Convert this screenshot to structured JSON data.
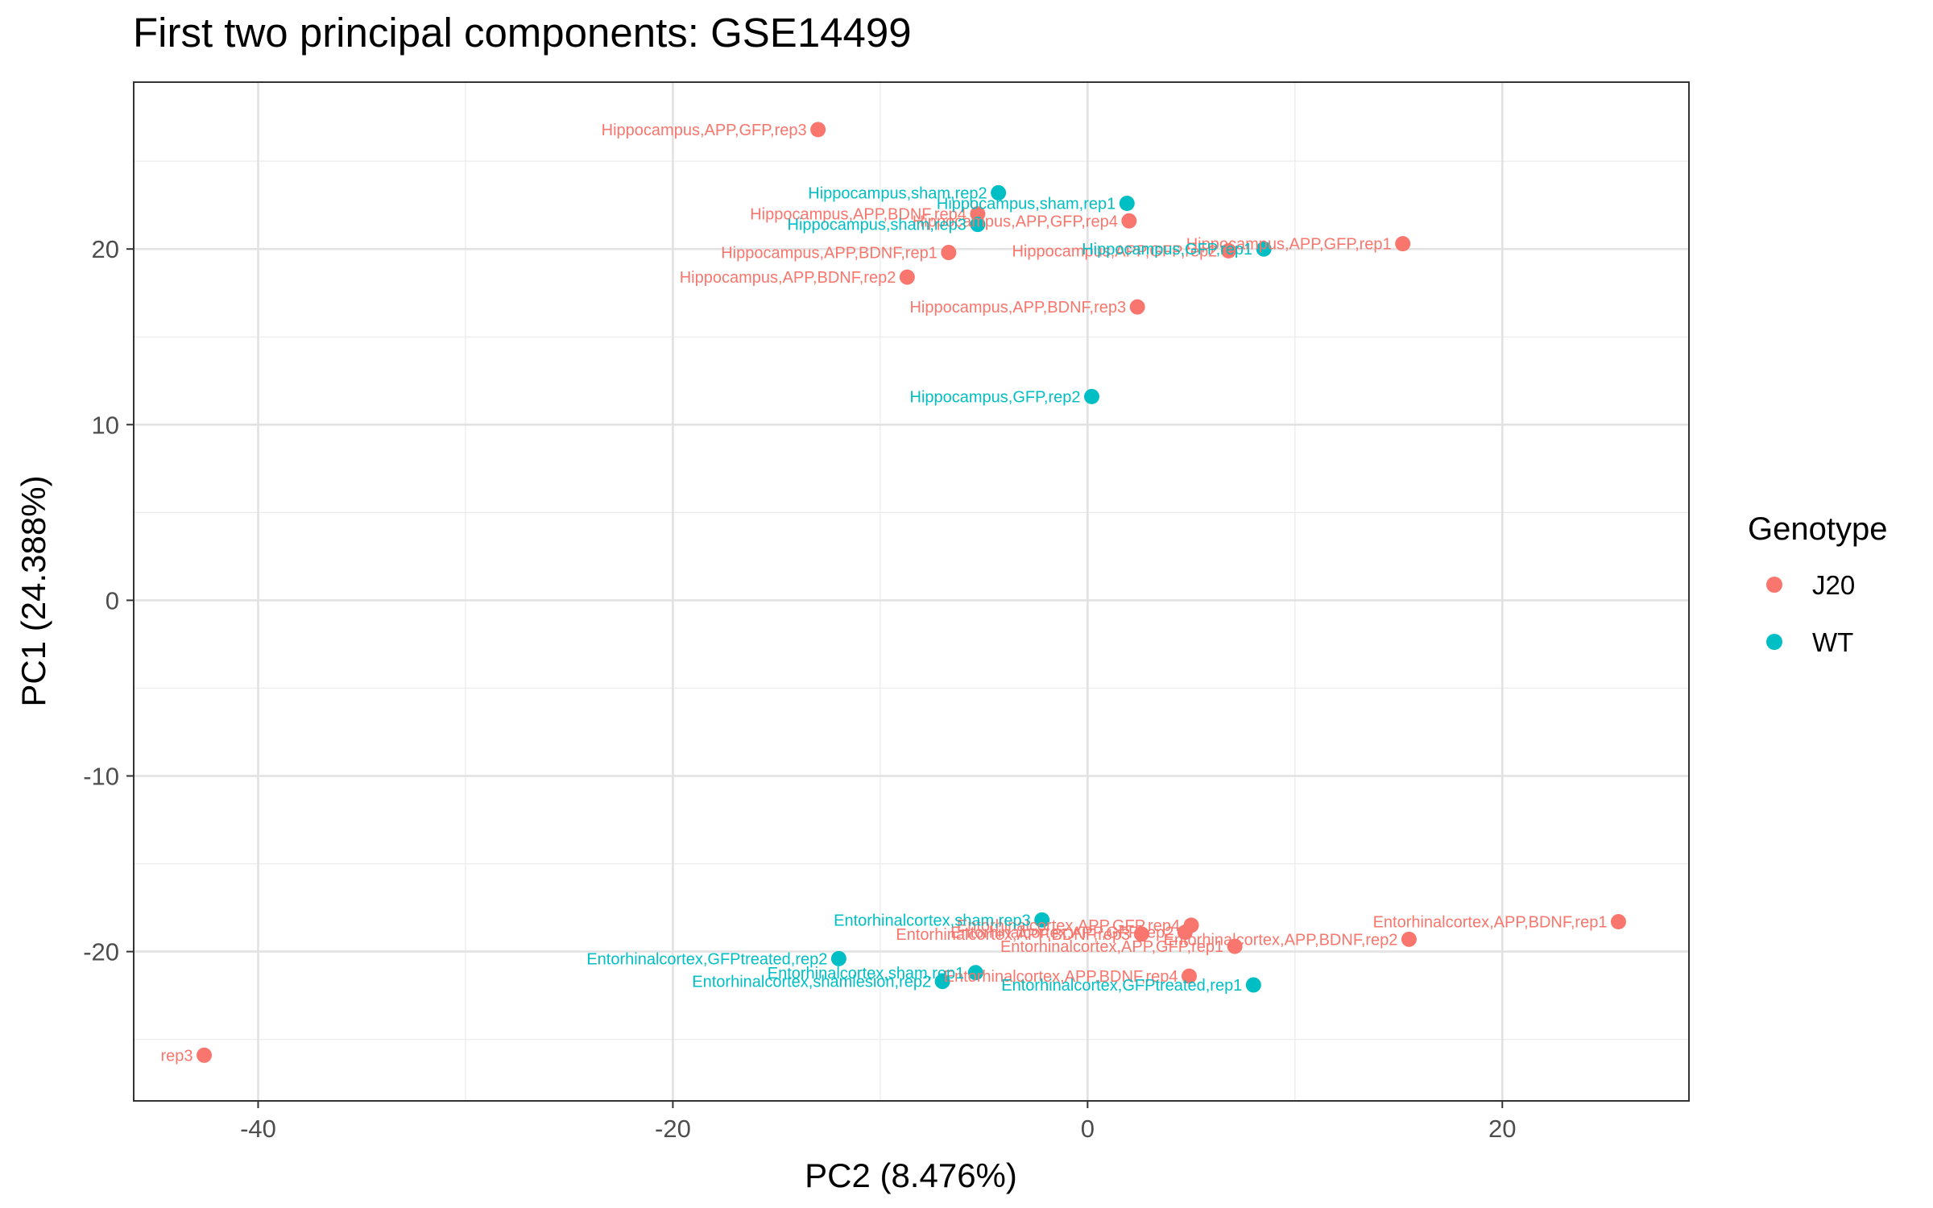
{
  "chart_data": {
    "type": "scatter",
    "title": "First two principal components: GSE14499",
    "xlabel": "PC2 (8.476%)",
    "ylabel": "PC1 (24.388%)",
    "xlim": [
      -46,
      29
    ],
    "ylim": [
      -28.5,
      29.5
    ],
    "x_ticks": [
      -40,
      -20,
      0,
      20
    ],
    "y_ticks": [
      -20,
      -10,
      0,
      10,
      20
    ],
    "x_tick_labels": [
      "-40",
      "-20",
      "0",
      "20"
    ],
    "y_tick_labels": [
      "-20",
      "-10",
      "0",
      "10",
      "20"
    ],
    "grid": true,
    "legend": {
      "title": "Genotype",
      "position": "right",
      "entries": [
        {
          "name": "J20",
          "color": "#F8766D"
        },
        {
          "name": "WT",
          "color": "#00BFC4"
        }
      ]
    },
    "series": [
      {
        "name": "J20",
        "color": "#F8766D",
        "points": [
          {
            "x": -13.0,
            "y": 26.8,
            "label": "Hippocampus,APP,GFP,rep3",
            "anchor": "end"
          },
          {
            "x": -5.3,
            "y": 22.0,
            "label": "Hippocampus,APP,BDNF,rep4",
            "anchor": "end"
          },
          {
            "x": 2.0,
            "y": 21.6,
            "label": "Hippocampus,APP,GFP,rep4",
            "anchor": "end"
          },
          {
            "x": 15.2,
            "y": 20.3,
            "label": "Hippocampus,APP,GFP,rep1",
            "anchor": "end"
          },
          {
            "x": -6.7,
            "y": 19.8,
            "label": "Hippocampus,APP,BDNF,rep1",
            "anchor": "end"
          },
          {
            "x": 6.8,
            "y": 19.9,
            "label": "Hippocampus,APP,GFP,rep2",
            "anchor": "end"
          },
          {
            "x": -8.7,
            "y": 18.4,
            "label": "Hippocampus,APP,BDNF,rep2",
            "anchor": "end"
          },
          {
            "x": 2.4,
            "y": 16.7,
            "label": "Hippocampus,APP,BDNF,rep3",
            "anchor": "end"
          },
          {
            "x": 25.6,
            "y": -18.3,
            "label": "Entorhinalcortex,APP,BDNF,rep1",
            "anchor": "end"
          },
          {
            "x": 5.0,
            "y": -18.5,
            "label": "Entorhinalcortex,APP,GFP,rep4",
            "anchor": "end"
          },
          {
            "x": 4.7,
            "y": -18.9,
            "label": "Entorhinalcortex,APP,GFP,rep2",
            "anchor": "end"
          },
          {
            "x": 2.6,
            "y": -19.0,
            "label": "Entorhinalcortex,APP,BDNF,rep3",
            "anchor": "end"
          },
          {
            "x": 15.5,
            "y": -19.3,
            "label": "Entorhinalcortex,APP,BDNF,rep2",
            "anchor": "end"
          },
          {
            "x": 7.1,
            "y": -19.7,
            "label": "Entorhinalcortex,APP,GFP,rep1",
            "anchor": "end"
          },
          {
            "x": 4.9,
            "y": -21.4,
            "label": "Entorhinalcortex,APP,BDNF,rep4",
            "anchor": "end"
          },
          {
            "x": -42.6,
            "y": -25.9,
            "label": "rep3",
            "anchor": "end"
          }
        ]
      },
      {
        "name": "WT",
        "color": "#00BFC4",
        "points": [
          {
            "x": -4.3,
            "y": 23.2,
            "label": "Hippocampus,sham,rep2",
            "anchor": "end"
          },
          {
            "x": 1.9,
            "y": 22.6,
            "label": "Hippocampus,sham,rep1",
            "anchor": "end"
          },
          {
            "x": -5.3,
            "y": 21.4,
            "label": "Hippocampus,sham,rep3",
            "anchor": "end"
          },
          {
            "x": 8.5,
            "y": 20.0,
            "label": "Hippocampus,GFP,rep1",
            "anchor": "end"
          },
          {
            "x": 0.2,
            "y": 11.6,
            "label": "Hippocampus,GFP,rep2",
            "anchor": "end"
          },
          {
            "x": -2.2,
            "y": -18.2,
            "label": "Entorhinalcortex,sham,rep3",
            "anchor": "end"
          },
          {
            "x": -12.0,
            "y": -20.4,
            "label": "Entorhinalcortex,GFPtreated,rep2",
            "anchor": "end"
          },
          {
            "x": -5.4,
            "y": -21.2,
            "label": "Entorhinalcortex,sham,rep1",
            "anchor": "end"
          },
          {
            "x": -7.0,
            "y": -21.7,
            "label": "Entorhinalcortex,shamlesion,rep2",
            "anchor": "end"
          },
          {
            "x": 8.0,
            "y": -21.9,
            "label": "Entorhinalcortex,GFPtreated,rep1",
            "anchor": "end"
          }
        ]
      }
    ]
  }
}
